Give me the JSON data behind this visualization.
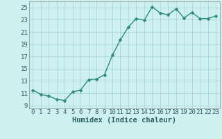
{
  "x": [
    0,
    1,
    2,
    3,
    4,
    5,
    6,
    7,
    8,
    9,
    10,
    11,
    12,
    13,
    14,
    15,
    16,
    17,
    18,
    19,
    20,
    21,
    22,
    23
  ],
  "y": [
    11.5,
    10.8,
    10.5,
    10.0,
    9.8,
    11.2,
    11.5,
    13.2,
    13.3,
    14.0,
    17.2,
    19.7,
    21.8,
    23.2,
    22.9,
    25.1,
    24.1,
    23.8,
    24.8,
    23.3,
    24.2,
    23.2,
    23.2,
    23.6
  ],
  "line_color": "#2e8b7a",
  "marker_color": "#2e8b7a",
  "bg_color": "#cff0f0",
  "grid_color": "#a8d8d8",
  "xlabel": "Humidex (Indice chaleur)",
  "ylabel_ticks": [
    9,
    11,
    13,
    15,
    17,
    19,
    21,
    23,
    25
  ],
  "xtick_labels": [
    "0",
    "1",
    "2",
    "3",
    "4",
    "5",
    "6",
    "7",
    "8",
    "9",
    "10",
    "11",
    "12",
    "13",
    "14",
    "15",
    "16",
    "17",
    "18",
    "19",
    "20",
    "21",
    "22",
    "23"
  ],
  "ylim": [
    8.5,
    26.0
  ],
  "xlim": [
    -0.5,
    23.5
  ],
  "xlabel_fontsize": 7.5,
  "tick_fontsize": 6.5,
  "line_width": 1.0,
  "marker_size": 2.5
}
